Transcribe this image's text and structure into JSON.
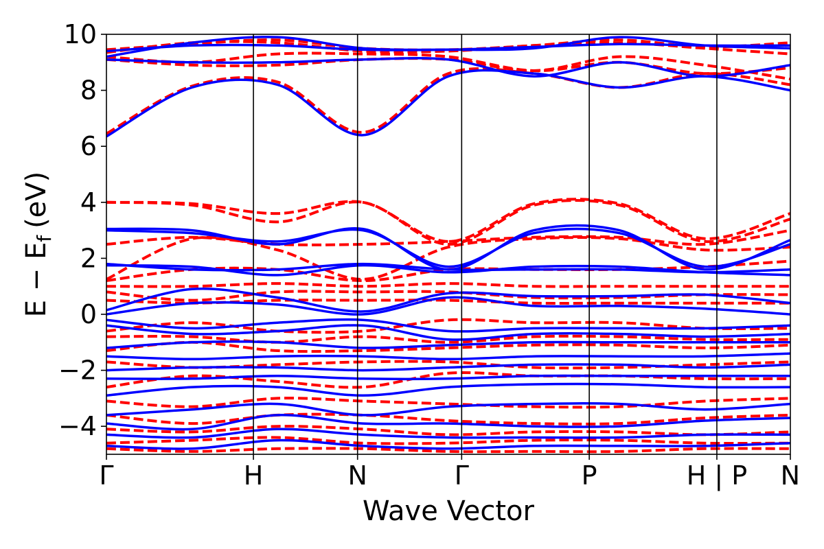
{
  "chart_data": {
    "type": "line",
    "title": "",
    "xlabel": "Wave Vector",
    "ylabel": "E − E",
    "ylabel_sub": "f",
    "ylabel_unit": "(eV)",
    "ylim": [
      -5,
      10
    ],
    "yticks": [
      {
        "value": -4,
        "label": "−4"
      },
      {
        "value": -2,
        "label": "−2"
      },
      {
        "value": 0,
        "label": "0"
      },
      {
        "value": 2,
        "label": "2"
      },
      {
        "value": 4,
        "label": "4"
      },
      {
        "value": 6,
        "label": "6"
      },
      {
        "value": 8,
        "label": "8"
      },
      {
        "value": 10,
        "label": "10"
      }
    ],
    "xlim": [
      0,
      6.7
    ],
    "kpoints": [
      {
        "x": 0,
        "label": "Γ"
      },
      {
        "x": 1.44,
        "label": "H"
      },
      {
        "x": 2.46,
        "label": "N"
      },
      {
        "x": 3.48,
        "label": "Γ"
      },
      {
        "x": 4.73,
        "label": "P"
      },
      {
        "x": 5.98,
        "label": "H | P"
      },
      {
        "x": 6.7,
        "label": "N"
      }
    ],
    "series": [
      {
        "style": "dashed",
        "color": "#ff0000",
        "bands": [
          [
            9.35,
            9.7,
            9.7,
            9.4,
            9.4,
            9.6,
            9.7,
            9.5,
            9.3
          ],
          [
            9.45,
            9.65,
            9.8,
            9.5,
            9.45,
            9.6,
            9.8,
            9.55,
            9.7
          ],
          [
            9.2,
            9.0,
            9.3,
            9.3,
            9.2,
            8.7,
            9.0,
            8.6,
            8.8
          ],
          [
            6.45,
            8.15,
            8.3,
            6.5,
            8.6,
            8.6,
            8.1,
            8.6,
            8.2
          ],
          [
            9.1,
            8.9,
            8.9,
            9.1,
            9.1,
            8.7,
            9.2,
            8.9,
            8.4
          ],
          [
            4.0,
            3.95,
            3.6,
            4.0,
            2.6,
            3.95,
            3.95,
            2.7,
            3.6
          ],
          [
            4.0,
            3.9,
            3.3,
            4.0,
            2.5,
            3.9,
            3.9,
            2.6,
            3.4
          ],
          [
            2.5,
            2.75,
            2.5,
            2.5,
            2.6,
            2.75,
            2.75,
            2.5,
            3.0
          ],
          [
            1.25,
            2.7,
            2.3,
            1.25,
            2.4,
            2.7,
            2.7,
            2.3,
            2.4
          ],
          [
            1.2,
            1.6,
            1.6,
            1.2,
            1.6,
            1.6,
            1.6,
            1.7,
            1.9
          ],
          [
            1.0,
            1.0,
            1.1,
            1.0,
            1.1,
            1.0,
            1.0,
            1.0,
            1.0
          ],
          [
            0.8,
            0.5,
            0.8,
            0.8,
            0.8,
            0.6,
            0.6,
            0.7,
            0.7
          ],
          [
            0.5,
            0.4,
            0.5,
            0.5,
            0.5,
            0.4,
            0.4,
            0.4,
            0.4
          ],
          [
            -0.6,
            -0.3,
            -0.6,
            -0.6,
            -0.2,
            -0.3,
            -0.3,
            -0.5,
            -0.5
          ],
          [
            -0.8,
            -0.8,
            -1.0,
            -0.8,
            -1.0,
            -0.8,
            -0.8,
            -0.9,
            -0.9
          ],
          [
            -1.3,
            -1.0,
            -1.3,
            -1.3,
            -1.2,
            -1.1,
            -1.1,
            -1.2,
            -1.1
          ],
          [
            -1.7,
            -1.9,
            -1.8,
            -1.7,
            -1.7,
            -1.9,
            -1.9,
            -1.8,
            -1.7
          ],
          [
            -2.6,
            -2.2,
            -2.4,
            -2.6,
            -2.1,
            -2.2,
            -2.2,
            -2.3,
            -2.3
          ],
          [
            -3.1,
            -3.3,
            -3.0,
            -3.1,
            -3.2,
            -3.3,
            -3.3,
            -3.1,
            -3.0
          ],
          [
            -3.6,
            -3.9,
            -3.6,
            -3.6,
            -3.8,
            -3.9,
            -3.9,
            -3.7,
            -3.6
          ],
          [
            -4.1,
            -4.2,
            -4.0,
            -4.1,
            -4.3,
            -4.2,
            -4.2,
            -4.3,
            -4.2
          ],
          [
            -4.6,
            -4.5,
            -4.4,
            -4.6,
            -4.6,
            -4.5,
            -4.5,
            -4.6,
            -4.6
          ],
          [
            -4.8,
            -4.9,
            -4.8,
            -4.8,
            -4.9,
            -4.9,
            -4.9,
            -4.8,
            -4.8
          ]
        ]
      },
      {
        "style": "solid",
        "color": "#0000ff",
        "bands": [
          [
            9.4,
            9.6,
            9.6,
            9.45,
            9.45,
            9.55,
            9.65,
            9.6,
            9.6
          ],
          [
            9.2,
            9.7,
            9.9,
            9.5,
            9.45,
            9.5,
            9.9,
            9.6,
            9.5
          ],
          [
            9.1,
            9.0,
            9.0,
            9.1,
            9.1,
            8.5,
            9.0,
            8.5,
            8.9
          ],
          [
            6.35,
            8.1,
            8.2,
            6.4,
            8.5,
            8.6,
            8.1,
            8.5,
            8.0
          ],
          [
            3.05,
            3.0,
            2.5,
            3.05,
            1.6,
            3.0,
            3.0,
            1.6,
            2.65
          ],
          [
            3.0,
            2.9,
            2.6,
            3.0,
            1.7,
            2.9,
            2.9,
            1.7,
            2.5
          ],
          [
            1.8,
            1.6,
            1.6,
            1.8,
            1.6,
            1.6,
            1.6,
            1.5,
            1.6
          ],
          [
            1.75,
            1.7,
            1.4,
            1.75,
            1.5,
            1.7,
            1.7,
            1.5,
            1.4
          ],
          [
            0.15,
            0.9,
            0.6,
            0.1,
            0.75,
            0.65,
            0.65,
            0.7,
            0.4
          ],
          [
            0.0,
            0.4,
            0.35,
            0.0,
            0.6,
            0.3,
            0.3,
            0.2,
            0.0
          ],
          [
            -0.2,
            -0.5,
            -0.3,
            -0.2,
            -0.6,
            -0.5,
            -0.5,
            -0.5,
            -0.4
          ],
          [
            -0.4,
            -0.7,
            -0.6,
            -0.4,
            -0.9,
            -0.7,
            -0.7,
            -0.8,
            -0.7
          ],
          [
            -1.2,
            -1.0,
            -1.0,
            -1.2,
            -1.1,
            -1.0,
            -1.0,
            -1.0,
            -1.0
          ],
          [
            -1.5,
            -1.6,
            -1.5,
            -1.5,
            -1.6,
            -1.5,
            -1.5,
            -1.5,
            -1.4
          ],
          [
            -2.0,
            -1.9,
            -1.9,
            -2.0,
            -1.9,
            -1.8,
            -1.8,
            -1.9,
            -1.8
          ],
          [
            -2.3,
            -2.3,
            -2.2,
            -2.3,
            -2.3,
            -2.2,
            -2.2,
            -2.2,
            -2.2
          ],
          [
            -2.9,
            -2.6,
            -2.6,
            -2.9,
            -2.6,
            -2.5,
            -2.5,
            -2.6,
            -2.6
          ],
          [
            -3.6,
            -3.4,
            -3.2,
            -3.6,
            -3.3,
            -3.2,
            -3.2,
            -3.4,
            -3.2
          ],
          [
            -3.9,
            -4.1,
            -3.6,
            -3.9,
            -3.9,
            -4.0,
            -4.0,
            -3.8,
            -3.7
          ],
          [
            -4.3,
            -4.4,
            -4.1,
            -4.3,
            -4.4,
            -4.4,
            -4.4,
            -4.3,
            -4.3
          ],
          [
            -4.7,
            -4.8,
            -4.5,
            -4.7,
            -4.8,
            -4.7,
            -4.7,
            -4.7,
            -4.6
          ]
        ]
      }
    ],
    "grid": false,
    "legend": "none"
  }
}
